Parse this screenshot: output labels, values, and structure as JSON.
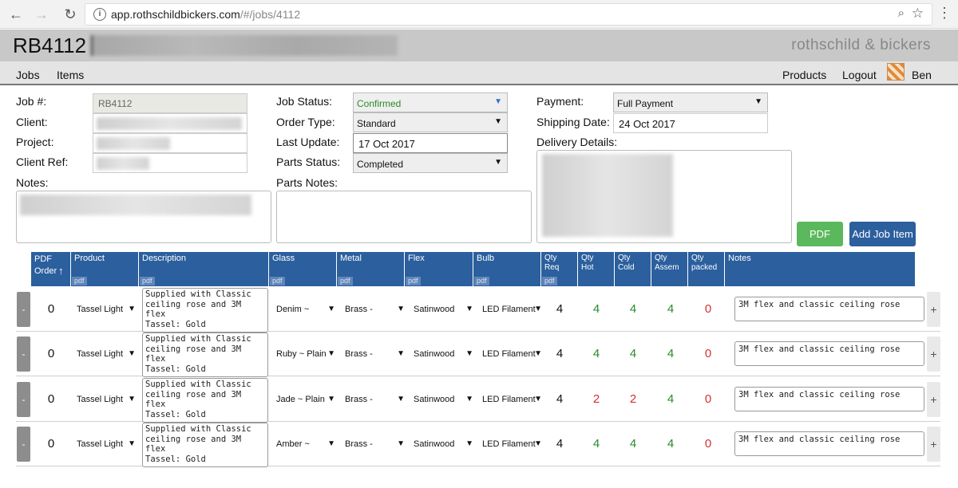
{
  "browser": {
    "back": "←",
    "forward": "→",
    "reload": "↻",
    "info": "i",
    "url_host": "app.rothschildbickers.com",
    "url_path": "/#/jobs/4112",
    "zoom": "⌕",
    "star": "☆",
    "menu": "⋮"
  },
  "header": {
    "title": "RB4112",
    "brand": "rothschild & bickers"
  },
  "nav": {
    "left": [
      "Jobs",
      "Items"
    ],
    "right": [
      "Products",
      "Logout",
      "Ben"
    ]
  },
  "form": {
    "job_no_label": "Job #:",
    "job_no_value": "RB4112",
    "client_label": "Client:",
    "project_label": "Project:",
    "client_ref_label": "Client Ref:",
    "notes_label": "Notes:",
    "job_status_label": "Job Status:",
    "job_status_value": "Confirmed",
    "order_type_label": "Order Type:",
    "order_type_value": "Standard",
    "last_update_label": "Last Update:",
    "last_update_value": "17 Oct 2017",
    "parts_status_label": "Parts Status:",
    "parts_status_value": "Completed",
    "parts_notes_label": "Parts Notes:",
    "payment_label": "Payment:",
    "payment_value": "Full Payment",
    "shipping_date_label": "Shipping Date:",
    "shipping_date_value": "24 Oct 2017",
    "delivery_label": "Delivery Details:",
    "pdf_button": "PDF",
    "add_item_button": "Add Job Item"
  },
  "table": {
    "headers": {
      "pdf_order": "PDF Order",
      "sort": "↑",
      "product": "Product",
      "description": "Description",
      "glass": "Glass",
      "metal": "Metal",
      "flex": "Flex",
      "bulb": "Bulb",
      "qty_req": "Qty Req",
      "qty_hot": "Qty Hot",
      "qty_cold": "Qty Cold",
      "qty_assem": "Qty Assem",
      "qty_packed": "Qty packed",
      "notes": "Notes",
      "pdf_tag": "pdf"
    },
    "minus_label": "-",
    "plus_label": "+",
    "rows": [
      {
        "order": "0",
        "product": "Tassel Light",
        "description": "Supplied with Classic\nceiling rose and 3M\nflex\nTassel: Gold",
        "glass": "Denim ~",
        "metal": "Brass -",
        "flex": "Satinwood",
        "bulb": "LED Filament",
        "qty_req": "4",
        "qty_hot": "4",
        "qty_cold": "4",
        "qty_assem": "4",
        "qty_packed": "0",
        "notes": "3M flex and classic ceiling rose"
      },
      {
        "order": "0",
        "product": "Tassel Light",
        "description": "Supplied with Classic\nceiling rose and 3M\nflex\nTassel: Gold",
        "glass": "Ruby ~ Plain",
        "metal": "Brass -",
        "flex": "Satinwood",
        "bulb": "LED Filament",
        "qty_req": "4",
        "qty_hot": "4",
        "qty_cold": "4",
        "qty_assem": "4",
        "qty_packed": "0",
        "notes": "3M flex and classic ceiling rose"
      },
      {
        "order": "0",
        "product": "Tassel Light",
        "description": "Supplied with Classic\nceiling rose and 3M\nflex\nTassel: Gold",
        "glass": "Jade ~ Plain",
        "metal": "Brass -",
        "flex": "Satinwood",
        "bulb": "LED Filament",
        "qty_req": "4",
        "qty_hot": "2",
        "qty_cold": "2",
        "qty_assem": "4",
        "qty_packed": "0",
        "notes": "3M flex and classic ceiling rose"
      },
      {
        "order": "0",
        "product": "Tassel Light",
        "description": "Supplied with Classic\nceiling rose and 3M\nflex\nTassel: Gold",
        "glass": "Amber ~",
        "metal": "Brass -",
        "flex": "Satinwood",
        "bulb": "LED Filament",
        "qty_req": "4",
        "qty_hot": "4",
        "qty_cold": "4",
        "qty_assem": "4",
        "qty_packed": "0",
        "notes": "3M flex and classic ceiling rose"
      }
    ]
  },
  "colors": {
    "header_blue": "#2b5f9e",
    "pdf_green": "#5cb85c",
    "ok_green": "#2a8a2a",
    "warn_red": "#d32f2f"
  }
}
